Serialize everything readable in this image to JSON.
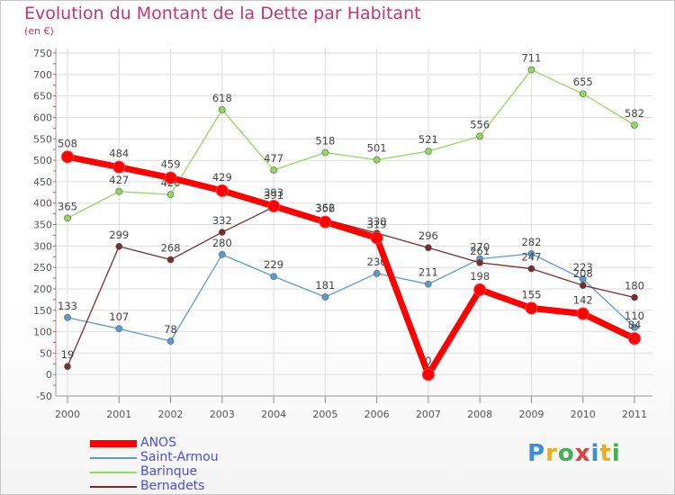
{
  "title": "Evolution du Montant de la Dette par Habitant",
  "subtitle": "(en €)",
  "logo": "Proxiti",
  "chart_data": {
    "type": "line",
    "title": "Evolution du Montant de la Dette par Habitant",
    "subtitle": "(en €)",
    "xlabel": "",
    "ylabel": "",
    "ylim": [
      -50,
      750
    ],
    "yticks": [
      -50,
      0,
      50,
      100,
      150,
      200,
      250,
      300,
      350,
      400,
      450,
      500,
      550,
      600,
      650,
      700,
      750
    ],
    "grid": true,
    "legend": "bottom-left",
    "categories": [
      "2000",
      "2001",
      "2002",
      "2003",
      "2004",
      "2005",
      "2006",
      "2007",
      "2008",
      "2009",
      "2010",
      "2011"
    ],
    "series": [
      {
        "name": "ANOS",
        "color": "#ff0000",
        "values": [
          508,
          484,
          459,
          429,
          393,
          356,
          319,
          0,
          198,
          155,
          142,
          84
        ]
      },
      {
        "name": "Saint-Armou",
        "color": "#5b9bd5",
        "values": [
          133,
          107,
          78,
          280,
          229,
          181,
          236,
          211,
          270,
          282,
          223,
          110
        ]
      },
      {
        "name": "Barinque",
        "color": "#8fdc5a",
        "values": [
          365,
          427,
          420,
          618,
          477,
          518,
          501,
          521,
          556,
          711,
          655,
          582
        ]
      },
      {
        "name": "Bernadets",
        "color": "#7a2b2b",
        "values": [
          19,
          299,
          268,
          332,
          391,
          362,
          330,
          296,
          261,
          247,
          208,
          180
        ]
      }
    ]
  }
}
